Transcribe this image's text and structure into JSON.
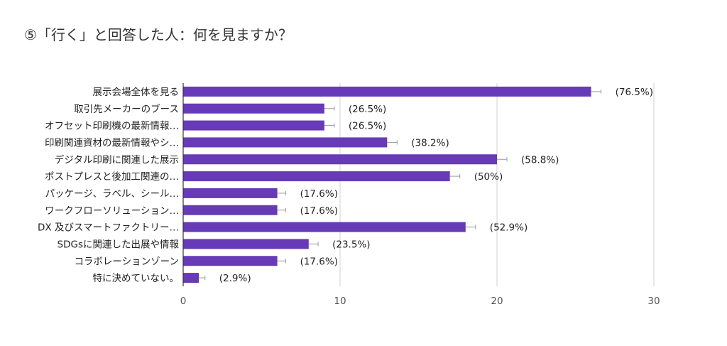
{
  "chart_data": {
    "type": "bar",
    "orientation": "horizontal",
    "title": "⑤「行く」と回答した人：何を見ますか？",
    "categories": [
      "展示会場全体を見る",
      "取引先メーカーのブース",
      "オフセット印刷機の最新情報…",
      "印刷関連資材の最新情報やシ…",
      "デジタル印刷に関連した展示",
      "ポストプレスと後加工関連の…",
      "パッケージ、ラベル、シール…",
      "ワークフローソリューション…",
      "DX 及びスマートファクトリー…",
      "SDGsに関連した出展や情報",
      "コラボレーションゾーン",
      "特に決めていない。"
    ],
    "values": [
      26,
      9,
      9,
      13,
      20,
      17,
      6,
      6,
      18,
      8,
      6,
      1
    ],
    "data_labels": [
      "(76.5%)",
      "(26.5%)",
      "(26.5%)",
      "(38.2%)",
      "(58.8%)",
      "(50%)",
      "(17.6%)",
      "(17.6%)",
      "(52.9%)",
      "(23.5%)",
      "(17.6%)",
      "(2.9%)"
    ],
    "xlim": [
      0,
      30
    ],
    "xticks": [
      0,
      10,
      20,
      30
    ],
    "grid": "vertical",
    "legend": "none",
    "colors": {
      "bar": "#673ab7",
      "grid": "#d0d0d0",
      "axis": "#333333",
      "error_bar": "#999999"
    }
  }
}
